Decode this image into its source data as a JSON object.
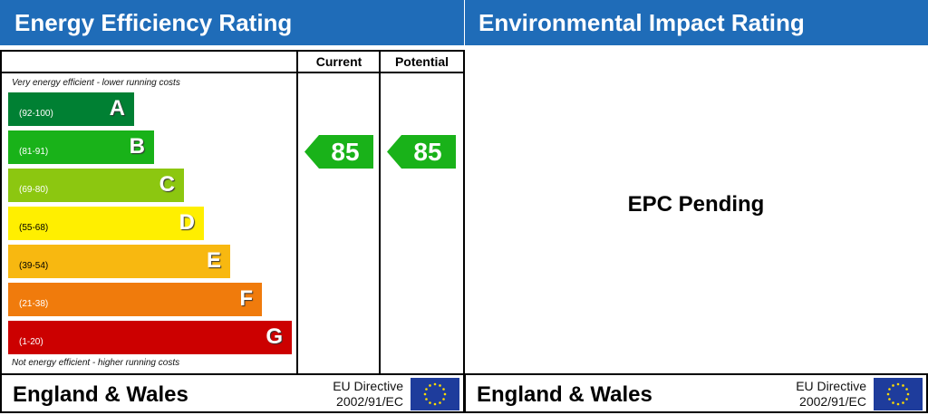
{
  "left_panel": {
    "title": "Energy Efficiency Rating",
    "columns": [
      "Current",
      "Potential"
    ],
    "top_note": "Very energy efficient - lower running costs",
    "bottom_note": "Not energy efficient - higher running costs",
    "footer": {
      "region": "England & Wales",
      "directive_line1": "EU Directive",
      "directive_line2": "2002/91/EC"
    }
  },
  "right_panel": {
    "title": "Environmental Impact Rating",
    "status": "EPC Pending",
    "footer": {
      "region": "England & Wales",
      "directive_line1": "EU Directive",
      "directive_line2": "2002/91/EC"
    }
  },
  "chart_data": {
    "type": "bar",
    "title": "Energy Efficiency Rating",
    "bands": [
      {
        "letter": "A",
        "range": "(92-100)",
        "color": "#008033"
      },
      {
        "letter": "B",
        "range": "(81-91)",
        "color": "#19b219"
      },
      {
        "letter": "C",
        "range": "(69-80)",
        "color": "#8cc710"
      },
      {
        "letter": "D",
        "range": "(55-68)",
        "color": "#ffef00"
      },
      {
        "letter": "E",
        "range": "(39-54)",
        "color": "#f8b810"
      },
      {
        "letter": "F",
        "range": "(21-38)",
        "color": "#f07b0c"
      },
      {
        "letter": "G",
        "range": "(1-20)",
        "color": "#cc0000"
      }
    ],
    "current": {
      "value": 85,
      "band": "B",
      "color": "#19b219"
    },
    "potential": {
      "value": 85,
      "band": "B",
      "color": "#19b219"
    }
  }
}
